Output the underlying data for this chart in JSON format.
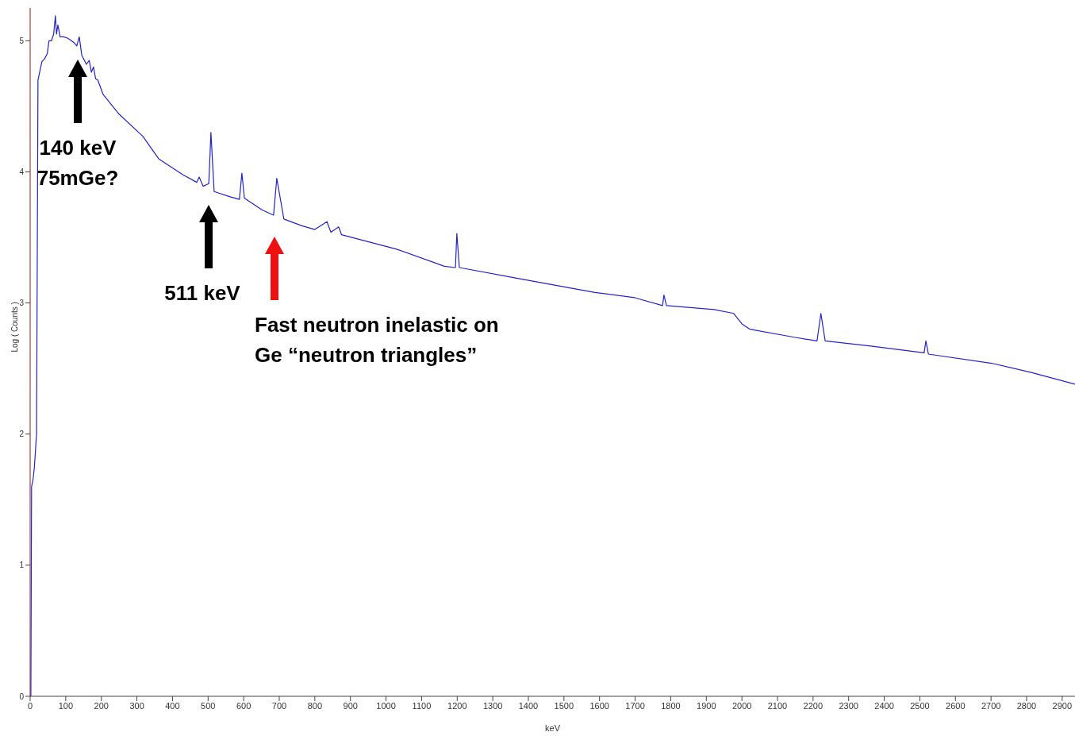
{
  "chart_data": {
    "type": "line",
    "xlabel": "keV",
    "ylabel": "Log ( Counts )",
    "xlim": [
      0,
      2936
    ],
    "ylim": [
      0,
      5.25
    ],
    "xticks": [
      0,
      100,
      200,
      300,
      400,
      500,
      600,
      700,
      800,
      900,
      1000,
      1100,
      1200,
      1300,
      1400,
      1500,
      1600,
      1700,
      1800,
      1900,
      2000,
      2100,
      2200,
      2300,
      2400,
      2500,
      2600,
      2700,
      2800,
      2900
    ],
    "yticks": [
      0,
      1,
      2,
      3,
      4,
      5
    ],
    "marker": "none",
    "line_style": "solid",
    "series": [
      {
        "color": "#2323c4",
        "x": [
          2,
          4,
          8,
          12,
          18,
          22,
          33,
          40,
          48,
          53,
          60,
          66,
          71,
          74,
          78,
          84,
          94,
          105,
          116,
          125,
          131,
          138,
          145,
          158,
          166,
          172,
          178,
          184,
          190,
          205,
          250,
          317,
          361,
          428,
          468,
          475,
          486,
          502,
          508,
          517,
          562,
          588,
          595,
          602,
          651,
          684,
          693,
          713,
          762,
          800,
          834,
          845,
          867,
          875,
          1030,
          1164,
          1195,
          1199,
          1206,
          1364,
          1587,
          1699,
          1777,
          1781,
          1788,
          1922,
          1977,
          2000,
          2022,
          2144,
          2211,
          2222,
          2234,
          2367,
          2512,
          2517,
          2524,
          2702,
          2813,
          2936
        ],
        "values": [
          0,
          1.6,
          1.65,
          1.75,
          2.0,
          4.7,
          4.84,
          4.86,
          4.9,
          5.0,
          5.0,
          5.05,
          5.19,
          5.05,
          5.12,
          5.03,
          5.03,
          5.02,
          5.0,
          4.98,
          4.96,
          5.03,
          4.89,
          4.82,
          4.85,
          4.76,
          4.8,
          4.71,
          4.7,
          4.59,
          4.44,
          4.27,
          4.1,
          3.98,
          3.92,
          3.96,
          3.89,
          3.91,
          4.3,
          3.85,
          3.81,
          3.79,
          3.99,
          3.8,
          3.71,
          3.67,
          3.95,
          3.64,
          3.59,
          3.56,
          3.62,
          3.54,
          3.58,
          3.52,
          3.41,
          3.28,
          3.27,
          3.53,
          3.27,
          3.19,
          3.08,
          3.04,
          2.98,
          3.06,
          2.98,
          2.95,
          2.92,
          2.84,
          2.8,
          2.74,
          2.71,
          2.92,
          2.71,
          2.67,
          2.62,
          2.71,
          2.61,
          2.54,
          2.47,
          2.38
        ]
      }
    ],
    "annotations": [
      "140 keV 75mGe?",
      "511 keV",
      "Fast neutron inelastic on Ge “neutron triangles”"
    ]
  }
}
